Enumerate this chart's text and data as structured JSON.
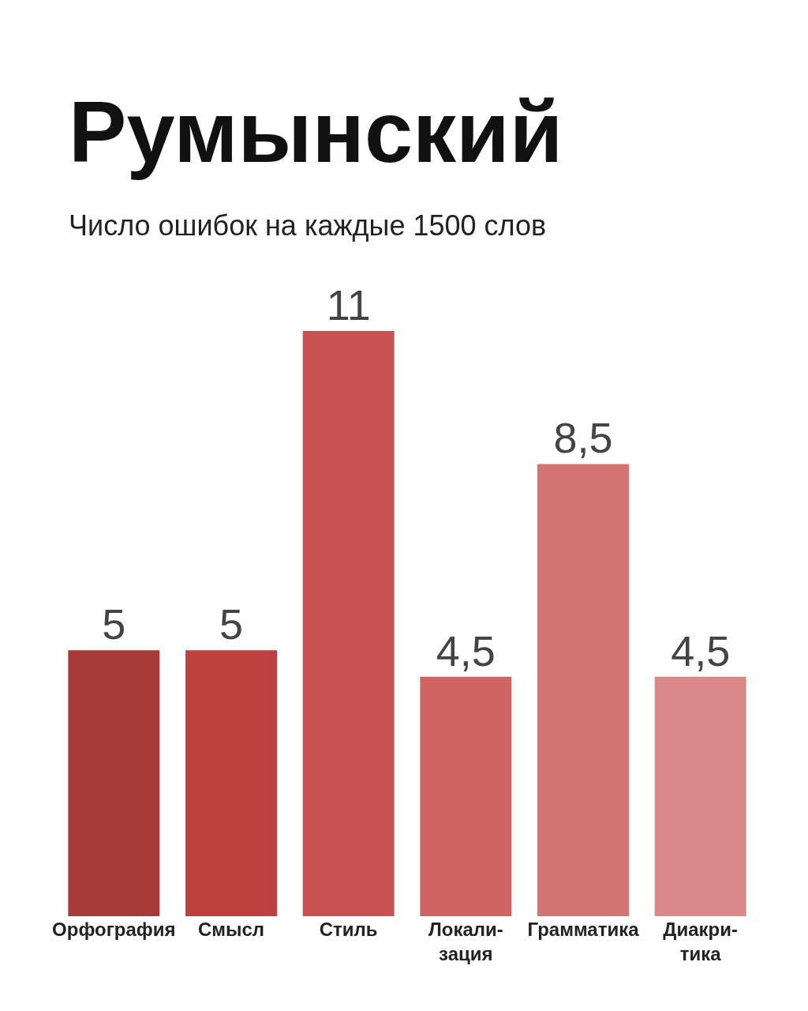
{
  "chart_data": {
    "type": "bar",
    "title": "Румынский",
    "subtitle": "Число ошибок на каждые 1500 слов",
    "categories": [
      "Орфография",
      "Смысл",
      "Стиль",
      "Локали-\nзация",
      "Грамматика",
      "Диакри-\nтика"
    ],
    "values": [
      5,
      5,
      11,
      4.5,
      8.5,
      4.5
    ],
    "value_labels": [
      "5",
      "5",
      "11",
      "4,5",
      "8,5",
      "4,5"
    ],
    "colors": [
      "#a83a3a",
      "#be4140",
      "#c85252",
      "#d06462",
      "#d47472",
      "#d98a88"
    ],
    "tick_labels": "x"
  }
}
